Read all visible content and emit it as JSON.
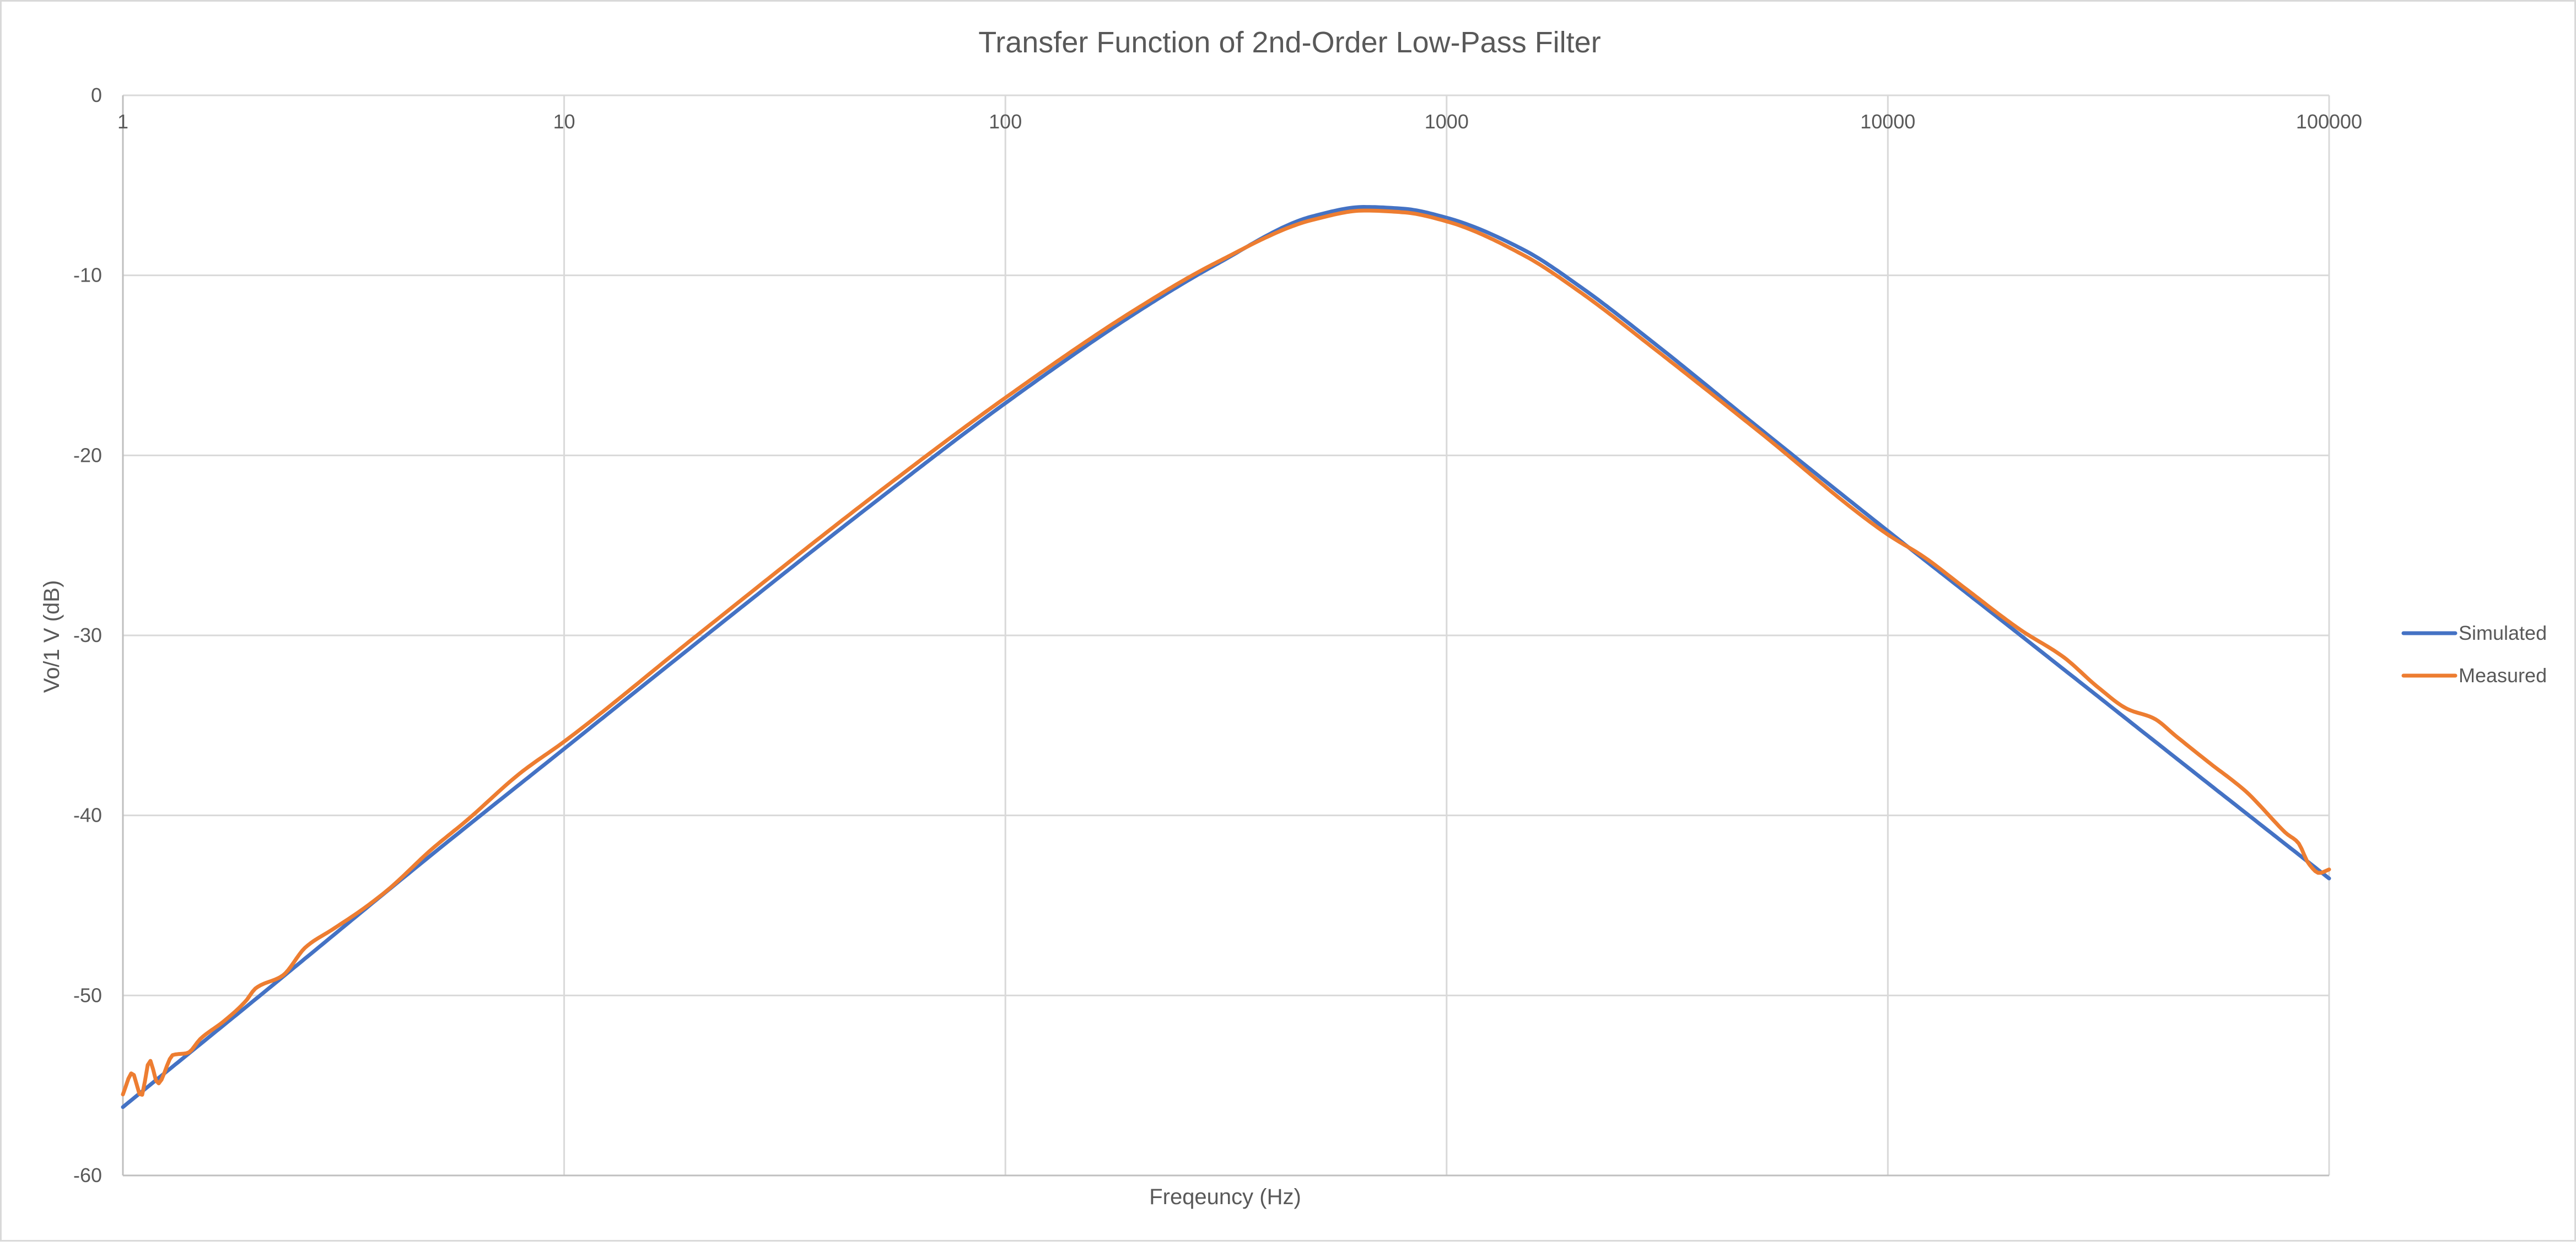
{
  "chart_data": {
    "type": "line",
    "title": "Transfer Function of 2nd-Order Low-Pass Filter",
    "xlabel": "Freqeuncy (Hz)",
    "ylabel": "Vo/1 V (dB)",
    "x_scale": "log",
    "xlim": [
      1,
      100000
    ],
    "ylim": [
      -60,
      0
    ],
    "x_ticks": [
      "1",
      "10",
      "100",
      "1000",
      "10000",
      "100000"
    ],
    "y_ticks": [
      "0",
      "-10",
      "-20",
      "-30",
      "-40",
      "-50",
      "-60"
    ],
    "grid": true,
    "legend_position": "right",
    "series": [
      {
        "name": "Simulated",
        "color": "#4472C4",
        "x": [
          1,
          2,
          5,
          10,
          20,
          50,
          100,
          200,
          300,
          500,
          650,
          800,
          1000,
          1500,
          2000,
          3000,
          5000,
          10000,
          20000,
          50000,
          100000
        ],
        "y": [
          -56.2,
          -50.2,
          -42.2,
          -36.3,
          -30.4,
          -22.7,
          -17.1,
          -12.0,
          -9.4,
          -6.7,
          -6.2,
          -6.3,
          -6.8,
          -8.6,
          -10.6,
          -13.9,
          -18.3,
          -24.2,
          -30.0,
          -37.7,
          -43.5
        ]
      },
      {
        "name": "Measured",
        "color": "#ED7D31",
        "x": [
          1,
          1.05,
          1.1,
          1.15,
          1.2,
          1.3,
          1.4,
          1.5,
          1.7,
          1.9,
          2,
          2.3,
          2.6,
          3,
          3.5,
          4,
          5,
          6,
          8,
          10,
          20,
          50,
          100,
          200,
          300,
          500,
          650,
          800,
          1000,
          1500,
          2000,
          3000,
          5000,
          10000,
          12000,
          15000,
          20000,
          25000,
          30000,
          35000,
          40000,
          45000,
          50000,
          55000,
          60000,
          65000,
          70000,
          75000,
          80000,
          85000,
          90000,
          95000,
          100000
        ],
        "y": [
          -55.5,
          -54.3,
          -55.6,
          -53.6,
          -54.9,
          -53.3,
          -53.2,
          -52.4,
          -51.4,
          -50.3,
          -49.6,
          -48.9,
          -47.3,
          -46.3,
          -45.2,
          -44.1,
          -41.9,
          -40.3,
          -37.6,
          -35.9,
          -30.0,
          -22.3,
          -16.8,
          -11.8,
          -9.3,
          -6.9,
          -6.4,
          -6.5,
          -7.0,
          -8.9,
          -10.9,
          -14.2,
          -18.5,
          -24.4,
          -25.6,
          -27.4,
          -29.7,
          -31.2,
          -32.9,
          -34.1,
          -34.6,
          -35.6,
          -36.5,
          -37.3,
          -38.0,
          -38.7,
          -39.5,
          -40.3,
          -41.0,
          -41.5,
          -42.7,
          -43.2,
          -43.0
        ]
      }
    ]
  }
}
